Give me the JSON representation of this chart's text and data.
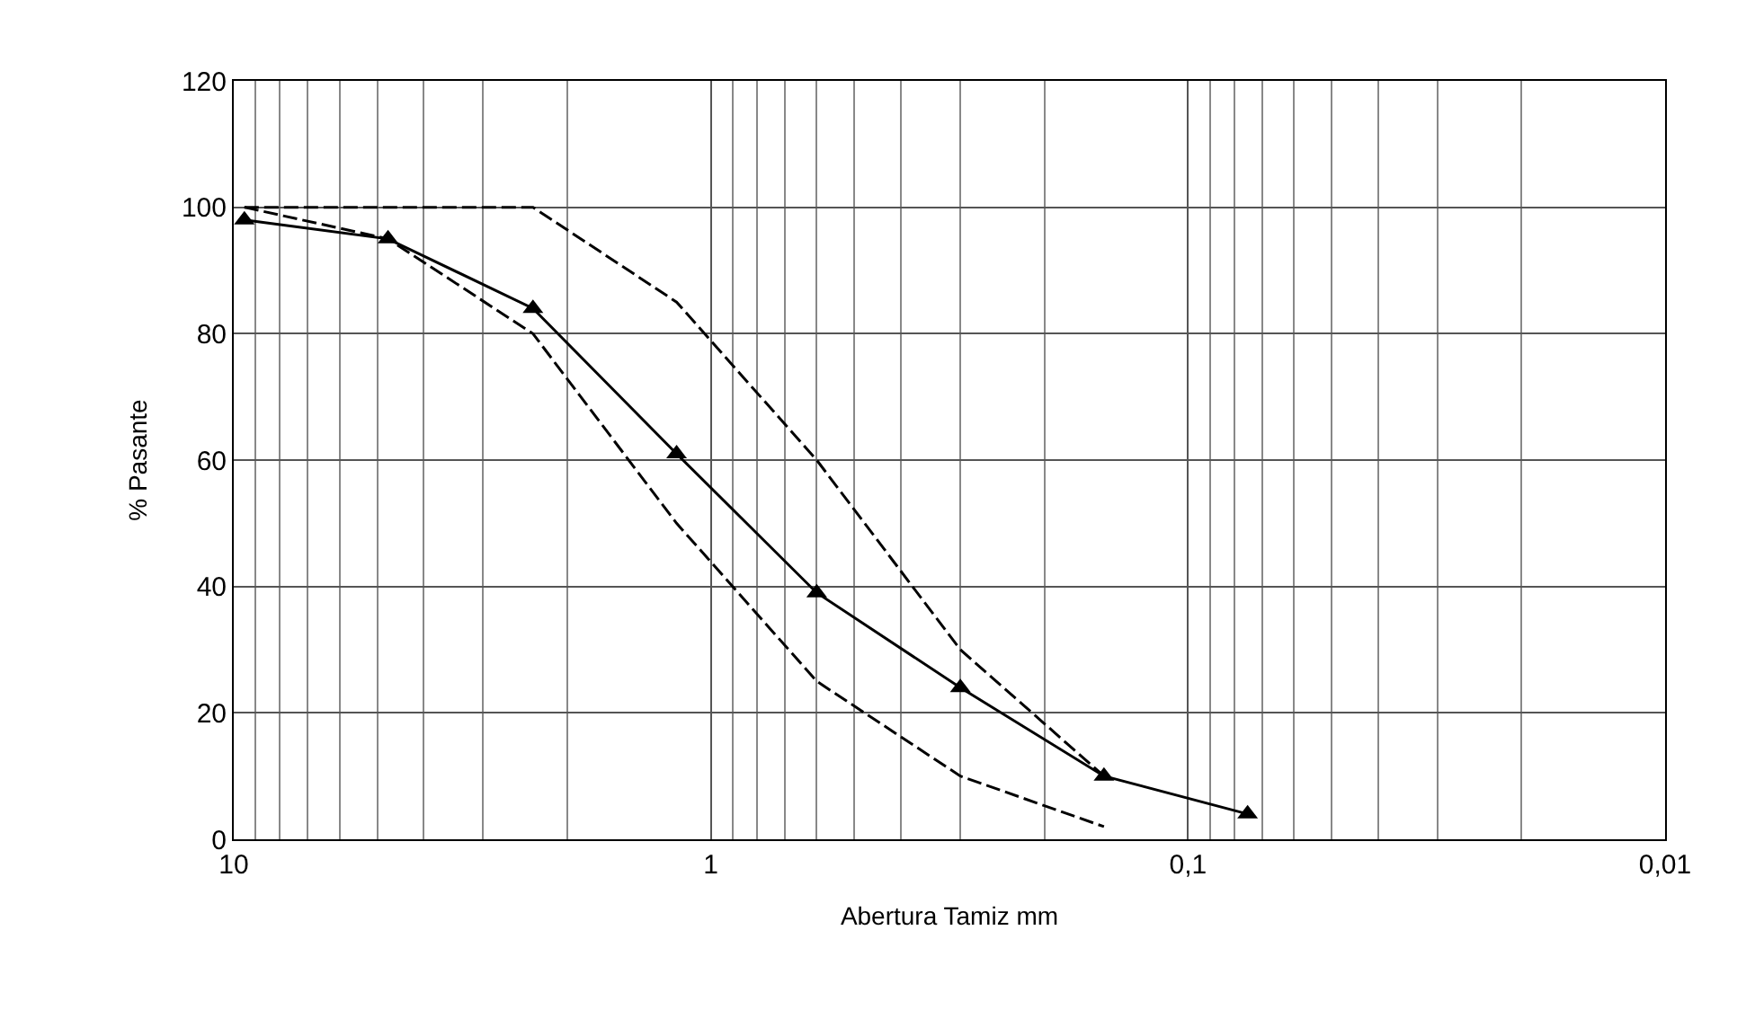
{
  "chart_data": {
    "type": "line",
    "xlabel": "Abertura Tamiz mm",
    "ylabel": "% Pasante",
    "log": "x",
    "xlim": [
      10,
      0.01
    ],
    "xticks": [
      10,
      1,
      {
        "value": 0.1,
        "label": "0,1"
      },
      {
        "value": 0.01,
        "label": "0,01"
      }
    ],
    "ylim": [
      0,
      120
    ],
    "yticks": [
      0,
      20,
      40,
      60,
      80,
      100,
      120
    ],
    "grid": true,
    "series": [
      {
        "x": [
          9.5,
          4.75,
          2.36,
          1.18,
          0.6,
          0.3,
          0.15,
          0.075
        ],
        "values": [
          98,
          95,
          84,
          61,
          39,
          24,
          10,
          4
        ],
        "color": "#000000",
        "marker": "triangle",
        "line_style": "solid"
      },
      {
        "x": [
          9.5,
          4.75,
          2.36,
          1.18,
          0.6,
          0.3,
          0.15
        ],
        "values": [
          100,
          100,
          100,
          85,
          60,
          30,
          10
        ],
        "color": "#000000",
        "marker": "none",
        "line_style": "dashed"
      },
      {
        "x": [
          9.5,
          4.75,
          2.36,
          1.18,
          0.6,
          0.3,
          0.15
        ],
        "values": [
          100,
          95,
          80,
          50,
          25,
          10,
          2
        ],
        "color": "#000000",
        "marker": "none",
        "line_style": "dashed"
      }
    ]
  }
}
